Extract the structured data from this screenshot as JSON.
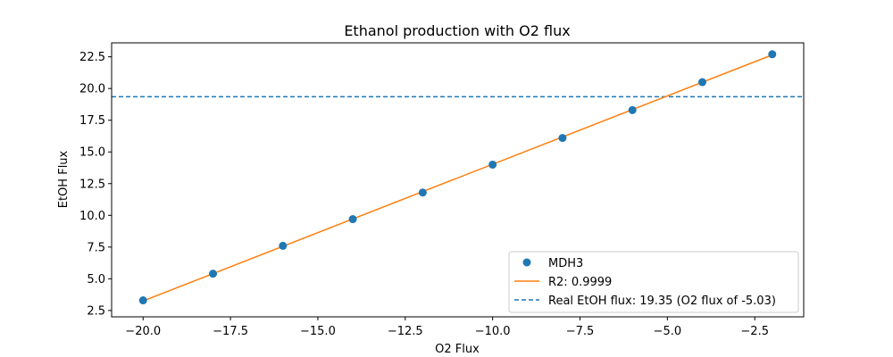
{
  "chart_data": {
    "type": "scatter",
    "title": "Ethanol production with O2 flux",
    "xlabel": "O2 Flux",
    "ylabel": "EtOH Flux",
    "xlim": [
      -20.9,
      -1.1
    ],
    "ylim": [
      2.0,
      23.6
    ],
    "xticks": [
      -20.0,
      -17.5,
      -15.0,
      -12.5,
      -10.0,
      -7.5,
      -5.0,
      -2.5
    ],
    "xtick_labels": [
      "−20.0",
      "−17.5",
      "−15.0",
      "−12.5",
      "−10.0",
      "−7.5",
      "−5.0",
      "−2.5"
    ],
    "yticks": [
      2.5,
      5.0,
      7.5,
      10.0,
      12.5,
      15.0,
      17.5,
      20.0,
      22.5
    ],
    "ytick_labels": [
      "2.5",
      "5.0",
      "7.5",
      "10.0",
      "12.5",
      "15.0",
      "17.5",
      "20.0",
      "22.5"
    ],
    "grid": false,
    "legend_position": "lower-right",
    "series": [
      {
        "name": "MDH3",
        "kind": "scatter",
        "color": "#1f77b4",
        "x": [
          -20,
          -18,
          -16,
          -14,
          -12,
          -10,
          -8,
          -6,
          -4,
          -2
        ],
        "y": [
          3.3,
          5.4,
          7.6,
          9.7,
          11.8,
          14.0,
          16.1,
          18.3,
          20.5,
          22.7
        ]
      },
      {
        "name": "R2: 0.9999",
        "kind": "line",
        "color": "#ff7f0e",
        "x": [
          -20,
          -2
        ],
        "y": [
          3.25,
          22.65
        ]
      },
      {
        "name": "Real EtOH flux: 19.35 (O2 flux of -5.03)",
        "kind": "hline",
        "style": "dashed",
        "color": "#1f77b4",
        "y": 19.35
      }
    ]
  }
}
